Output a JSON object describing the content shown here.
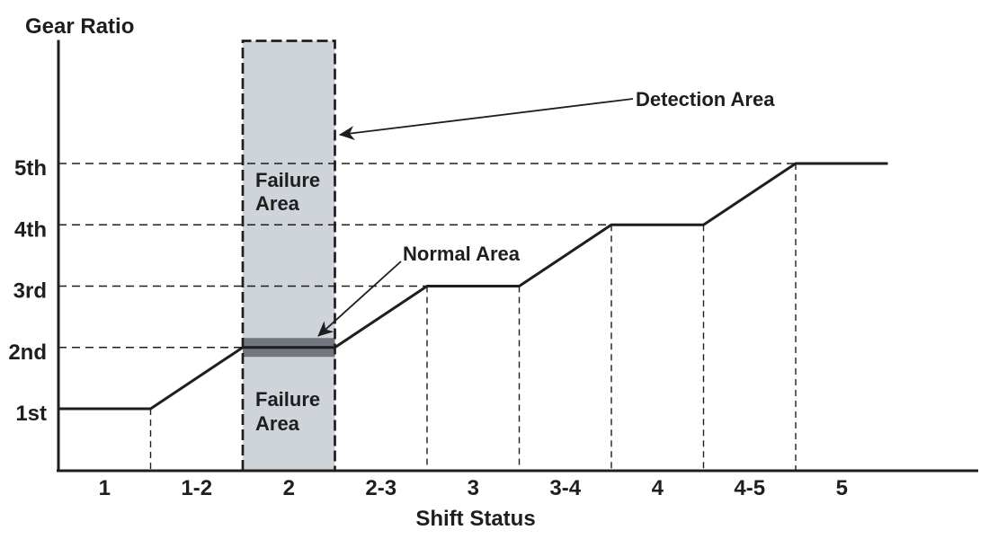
{
  "colors": {
    "ink": "#1e1e1e",
    "detection_band": "#cfd3da",
    "normal_band": "#72777d",
    "background": "#ffffff"
  },
  "chart_data": {
    "type": "line",
    "subtype": "step-profile gear shift diagram",
    "title": "",
    "ylabel": "Gear Ratio",
    "xlabel": "Shift Status",
    "x_categories": [
      "1",
      "1-2",
      "2",
      "2-3",
      "3",
      "3-4",
      "4",
      "4-5",
      "5"
    ],
    "y_tick_labels": [
      "1st",
      "2nd",
      "3rd",
      "4th",
      "5th"
    ],
    "grid": "dashed horizontal lines at each gear level ending where the profile reaches that gear; dashed vertical lines at each shift boundary down to the x axis",
    "legend": "none",
    "series": [
      {
        "name": "gear-ratio-profile",
        "points": [
          [
            0,
            1
          ],
          [
            1,
            1
          ],
          [
            2,
            2
          ],
          [
            3,
            2
          ],
          [
            4,
            3
          ],
          [
            5,
            3
          ],
          [
            6,
            4
          ],
          [
            7,
            4
          ],
          [
            8,
            5
          ],
          [
            9,
            5
          ]
        ],
        "points_format": "[shift-boundary-index, gear]: flat at gears 1-5 during segments 1,2,3,4,5 and ramping up during segments 1-2, 2-3, 3-4, 4-5"
      }
    ],
    "regions": [
      {
        "name": "detection-band",
        "label": "Detection Area",
        "x_category": "2",
        "extent": "full chart height shaded column with dashed border"
      },
      {
        "name": "failure-area-upper",
        "label": "Failure Area",
        "extent": "shaded column above the normal band"
      },
      {
        "name": "normal-band",
        "label": "Normal Area",
        "extent": "narrow dark horizontal band at 2nd gear ratio inside the shaded column"
      },
      {
        "name": "failure-area-lower",
        "label": "Failure Area",
        "extent": "shaded column below the normal band"
      }
    ]
  },
  "annotations": {
    "detection_area": {
      "text": "Detection Area"
    },
    "normal_area": {
      "text": "Normal Area"
    },
    "failure_upper": {
      "line1": "Failure",
      "line2": "Area"
    },
    "failure_lower": {
      "line1": "Failure",
      "line2": "Area"
    }
  }
}
